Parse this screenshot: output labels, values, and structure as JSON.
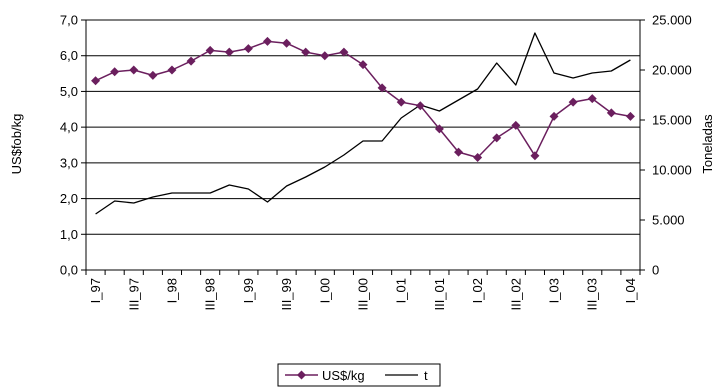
{
  "chart_data": {
    "type": "line",
    "categories": [
      "I_97",
      "II_97",
      "III_97",
      "IV_97",
      "I_98",
      "II_98",
      "III_98",
      "IV_98",
      "I_99",
      "II_99",
      "III_99",
      "IV_99",
      "I_00",
      "II_00",
      "III_00",
      "IV_00",
      "I_01",
      "II_01",
      "III_01",
      "IV_01",
      "I_02",
      "II_02",
      "III_02",
      "IV_02",
      "I_03",
      "II_03",
      "III_03",
      "IV_03",
      "I_04"
    ],
    "xtick_labels": [
      "I_97",
      "III_97",
      "I_98",
      "III_98",
      "I_99",
      "III_99",
      "I_00",
      "III_00",
      "I_01",
      "III_01",
      "I_02",
      "III_02",
      "I_03",
      "III_03",
      "I_04"
    ],
    "y_left": {
      "label": "US$fob/kg",
      "ylim": [
        0,
        7
      ],
      "ticks": [
        "0,0",
        "1,0",
        "2,0",
        "3,0",
        "4,0",
        "5,0",
        "6,0",
        "7,0"
      ]
    },
    "y_right": {
      "label": "Toneladas",
      "ylim": [
        0,
        25000
      ],
      "ticks": [
        "0",
        "5.000",
        "10.000",
        "15.000",
        "20.000",
        "25.000"
      ]
    },
    "series": [
      {
        "name": "US$/kg",
        "axis": "left",
        "color": "#6B1F5E",
        "marker": "diamond",
        "values": [
          5.3,
          5.55,
          5.6,
          5.45,
          5.6,
          5.85,
          6.15,
          6.1,
          6.2,
          6.4,
          6.35,
          6.1,
          6.0,
          6.1,
          5.75,
          5.1,
          4.7,
          4.6,
          3.95,
          3.3,
          3.15,
          3.7,
          4.05,
          3.2,
          4.3,
          4.7,
          4.8,
          4.4,
          4.3
        ]
      },
      {
        "name": "t",
        "axis": "right",
        "color": "#000000",
        "marker": "none",
        "values": [
          5600,
          6900,
          6700,
          7300,
          7700,
          7700,
          7700,
          8500,
          8100,
          6800,
          8400,
          9300,
          10300,
          11500,
          12900,
          12900,
          15200,
          16500,
          15900,
          17000,
          18100,
          20700,
          18500,
          23700,
          19700,
          19200,
          19700,
          19900,
          21000
        ]
      }
    ],
    "grid": true,
    "legend": "bottom-center"
  }
}
